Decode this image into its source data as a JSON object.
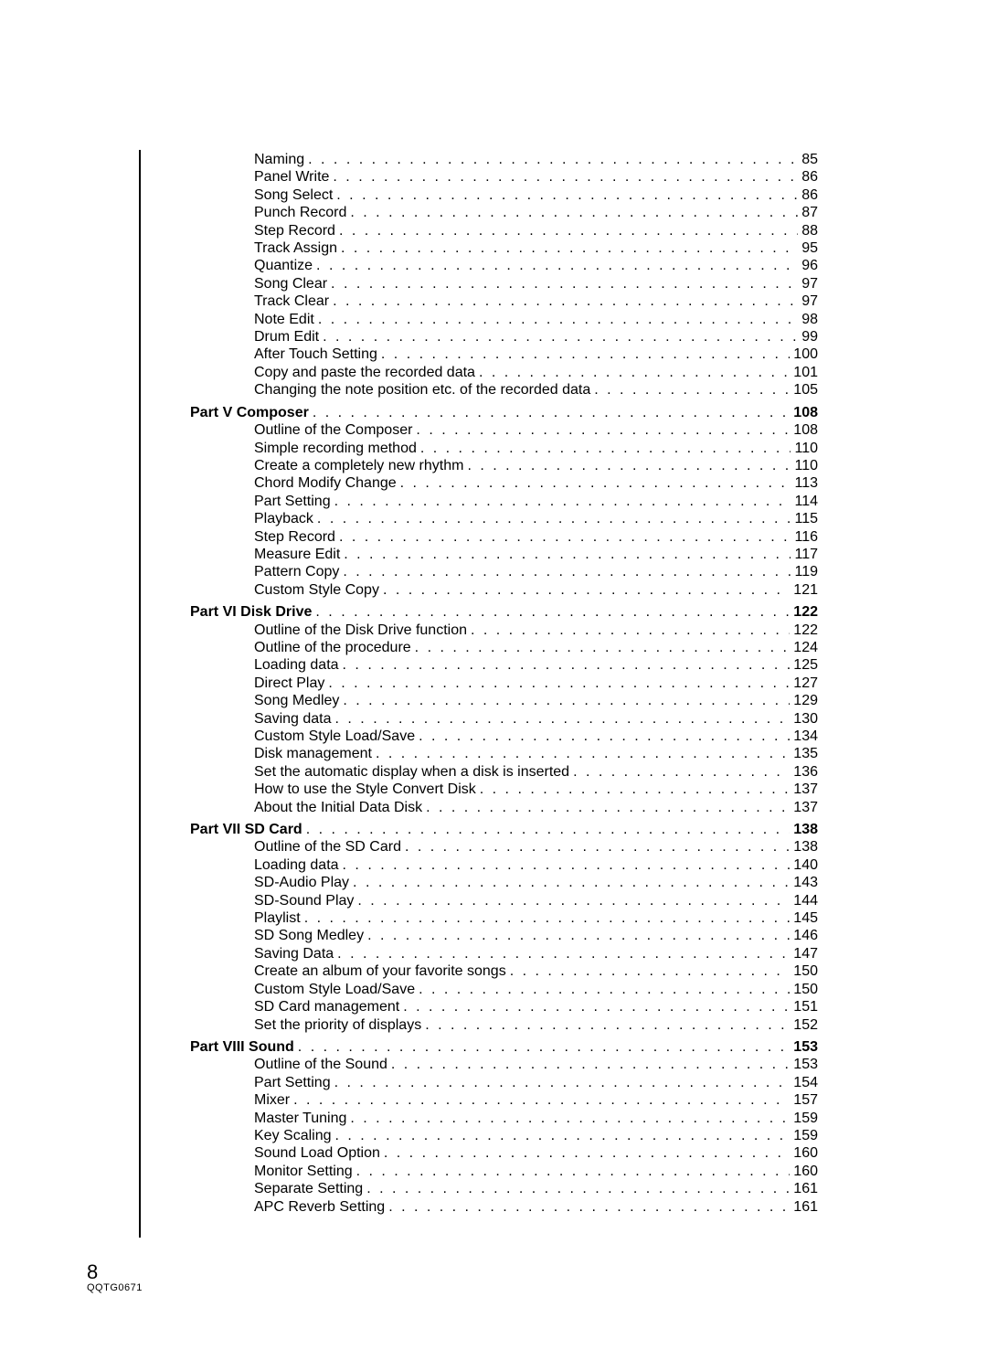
{
  "footer": {
    "page_number": "8",
    "doc_code": "QQTG0671"
  },
  "toc": [
    {
      "level": "item",
      "label": "Naming",
      "page": "85"
    },
    {
      "level": "item",
      "label": "Panel Write",
      "page": "86"
    },
    {
      "level": "item",
      "label": "Song Select",
      "page": "86"
    },
    {
      "level": "item",
      "label": "Punch Record",
      "page": "87"
    },
    {
      "level": "item",
      "label": "Step Record",
      "page": "88"
    },
    {
      "level": "item",
      "label": "Track Assign",
      "page": "95"
    },
    {
      "level": "item",
      "label": "Quantize",
      "page": "96"
    },
    {
      "level": "item",
      "label": "Song Clear",
      "page": "97"
    },
    {
      "level": "item",
      "label": "Track Clear",
      "page": "97"
    },
    {
      "level": "item",
      "label": "Note Edit",
      "page": "98"
    },
    {
      "level": "item",
      "label": "Drum Edit",
      "page": "99"
    },
    {
      "level": "item",
      "label": "After Touch Setting",
      "page": "100"
    },
    {
      "level": "item",
      "label": "Copy and paste the recorded data",
      "page": "101"
    },
    {
      "level": "item",
      "label": "Changing the note position etc. of the recorded data",
      "page": "105"
    },
    {
      "level": "part",
      "label": "Part V  Composer",
      "page": "108"
    },
    {
      "level": "item",
      "label": "Outline of the Composer",
      "page": "108"
    },
    {
      "level": "item",
      "label": "Simple recording method",
      "page": "110"
    },
    {
      "level": "item",
      "label": "Create a completely new rhythm",
      "page": "110"
    },
    {
      "level": "item",
      "label": "Chord Modify Change",
      "page": "113"
    },
    {
      "level": "item",
      "label": "Part Setting",
      "page": "114"
    },
    {
      "level": "item",
      "label": "Playback",
      "page": "115"
    },
    {
      "level": "item",
      "label": "Step Record",
      "page": "116"
    },
    {
      "level": "item",
      "label": "Measure Edit",
      "page": "117"
    },
    {
      "level": "item",
      "label": "Pattern Copy",
      "page": "119"
    },
    {
      "level": "item",
      "label": "Custom Style Copy",
      "page": "121"
    },
    {
      "level": "part",
      "label": "Part VI  Disk Drive",
      "page": "122"
    },
    {
      "level": "item",
      "label": "Outline of the Disk Drive function",
      "page": "122"
    },
    {
      "level": "item",
      "label": "Outline of the procedure",
      "page": "124"
    },
    {
      "level": "item",
      "label": "Loading data",
      "page": "125"
    },
    {
      "level": "item",
      "label": "Direct Play",
      "page": "127"
    },
    {
      "level": "item",
      "label": "Song Medley",
      "page": "129"
    },
    {
      "level": "item",
      "label": "Saving data",
      "page": "130"
    },
    {
      "level": "item",
      "label": "Custom Style Load/Save",
      "page": "134"
    },
    {
      "level": "item",
      "label": "Disk management",
      "page": "135"
    },
    {
      "level": "item",
      "label": "Set the automatic display when a disk is inserted",
      "page": "136"
    },
    {
      "level": "item",
      "label": "How to use the Style Convert Disk",
      "page": "137"
    },
    {
      "level": "item",
      "label": "About the Initial Data Disk",
      "page": "137"
    },
    {
      "level": "part",
      "label": "Part VII  SD Card",
      "page": "138"
    },
    {
      "level": "item",
      "label": "Outline of the SD Card",
      "page": "138"
    },
    {
      "level": "item",
      "label": "Loading data",
      "page": "140"
    },
    {
      "level": "item",
      "label": "SD-Audio Play",
      "page": "143"
    },
    {
      "level": "item",
      "label": "SD-Sound Play",
      "page": "144"
    },
    {
      "level": "item",
      "label": "Playlist",
      "page": "145"
    },
    {
      "level": "item",
      "label": "SD Song Medley",
      "page": "146"
    },
    {
      "level": "item",
      "label": "Saving Data",
      "page": "147"
    },
    {
      "level": "item",
      "label": "Create an album of your favorite songs",
      "page": "150"
    },
    {
      "level": "item",
      "label": "Custom Style Load/Save",
      "page": "150"
    },
    {
      "level": "item",
      "label": "SD Card management",
      "page": "151"
    },
    {
      "level": "item",
      "label": "Set the priority of displays",
      "page": "152"
    },
    {
      "level": "part",
      "label": "Part VIII  Sound",
      "page": "153"
    },
    {
      "level": "item",
      "label": "Outline of the Sound",
      "page": "153"
    },
    {
      "level": "item",
      "label": "Part Setting",
      "page": "154"
    },
    {
      "level": "item",
      "label": "Mixer",
      "page": "157"
    },
    {
      "level": "item",
      "label": "Master Tuning",
      "page": "159"
    },
    {
      "level": "item",
      "label": "Key Scaling",
      "page": "159"
    },
    {
      "level": "item",
      "label": "Sound Load Option",
      "page": "160"
    },
    {
      "level": "item",
      "label": "Monitor Setting",
      "page": "160"
    },
    {
      "level": "item",
      "label": "Separate Setting",
      "page": "161"
    },
    {
      "level": "item",
      "label": "APC Reverb Setting",
      "page": "161"
    }
  ]
}
